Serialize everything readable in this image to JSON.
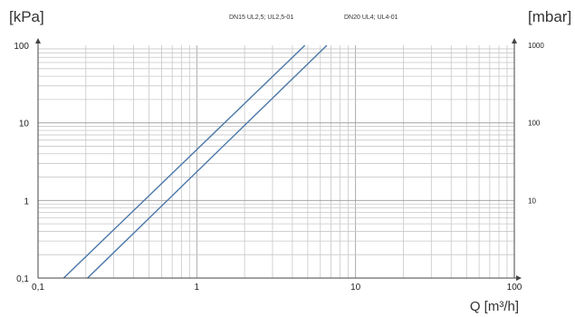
{
  "chart_data": {
    "type": "line",
    "x_scale": "log",
    "y_scale": "log",
    "xlim": [
      0.1,
      100
    ],
    "ylim": [
      0.1,
      100
    ],
    "y2lim": [
      1,
      1000
    ],
    "grid": true,
    "xlabel": "Q [m³/h]",
    "ylabel_left": "[kPa]",
    "ylabel_right": "[mbar]",
    "x_ticks": [
      {
        "value": 0.1,
        "label": "0,1"
      },
      {
        "value": 1,
        "label": "1"
      },
      {
        "value": 10,
        "label": "10"
      },
      {
        "value": 100,
        "label": "100"
      }
    ],
    "y_ticks_left": [
      {
        "value": 0.1,
        "label": "0,1"
      },
      {
        "value": 1,
        "label": "1"
      },
      {
        "value": 10,
        "label": "10"
      },
      {
        "value": 100,
        "label": "100"
      }
    ],
    "y_ticks_right": [
      {
        "value": 10,
        "label": "10"
      },
      {
        "value": 100,
        "label": "100"
      },
      {
        "value": 1000,
        "label": "1000"
      }
    ],
    "series": [
      {
        "name": "DN15 UL2,5; UL2,5-01",
        "color": "#4a77a8",
        "x": [
          0.145,
          4.8
        ],
        "y": [
          0.1,
          100
        ]
      },
      {
        "name": "DN20  UL4;  UL4-01",
        "color": "#4a77a8",
        "x": [
          0.205,
          6.6
        ],
        "y": [
          0.1,
          100
        ]
      }
    ]
  }
}
